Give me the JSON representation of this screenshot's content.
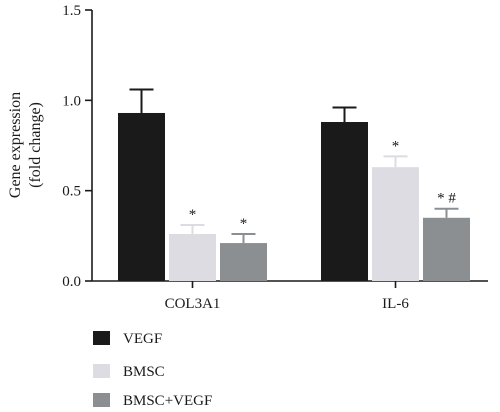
{
  "chart_data": {
    "type": "bar",
    "title": "",
    "xlabel": "",
    "ylabel_lines": [
      "Gene expression",
      "(fold change)"
    ],
    "ylim": [
      0,
      1.5
    ],
    "yticks": [
      "0.0",
      "0.5",
      "1.0",
      "1.5"
    ],
    "categories": [
      "COL3A1",
      "IL-6"
    ],
    "series": [
      {
        "name": "VEGF",
        "color": "#1a1a1a",
        "values": [
          0.93,
          0.88
        ],
        "errors": [
          0.13,
          0.08
        ],
        "annotations": [
          "",
          ""
        ]
      },
      {
        "name": "BMSC",
        "color": "#dcdce2",
        "values": [
          0.26,
          0.63
        ],
        "errors": [
          0.05,
          0.06
        ],
        "annotations": [
          "*",
          "*"
        ]
      },
      {
        "name": "BMSC+VEGF",
        "color": "#8c8f92",
        "values": [
          0.21,
          0.35
        ],
        "errors": [
          0.05,
          0.05
        ],
        "annotations": [
          "*",
          "* #"
        ]
      }
    ],
    "grid": false,
    "legend_position": "bottom-left"
  }
}
